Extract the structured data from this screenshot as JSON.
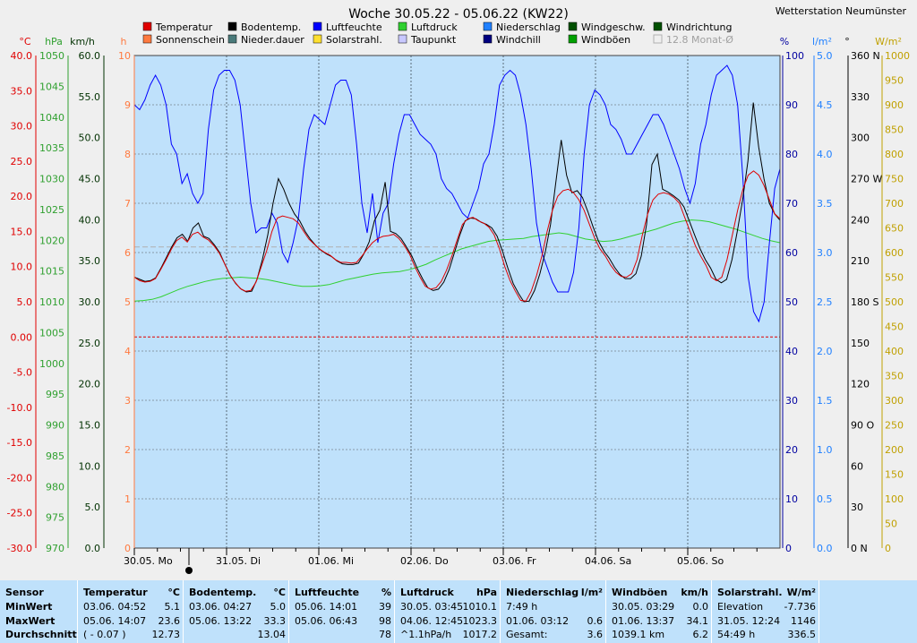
{
  "header": {
    "title": "Woche 30.05.22 - 05.06.22 (KW22)",
    "station": "Wetterstation Neumünster"
  },
  "legend": [
    {
      "label": "Temperatur",
      "color": "#e00000"
    },
    {
      "label": "Sonnenschein",
      "color": "#ff7a40"
    },
    {
      "label": "Bodentemp.",
      "color": "#000000"
    },
    {
      "label": "Nieder.dauer",
      "color": "#4a7a7a"
    },
    {
      "label": "Luftfeuchte",
      "color": "#0000ff"
    },
    {
      "label": "Solarstrahl.",
      "color": "#ffe030"
    },
    {
      "label": "Luftdruck",
      "color": "#30d030"
    },
    {
      "label": "Taupunkt",
      "color": "#c8c8ff"
    },
    {
      "label": "Niederschlag",
      "color": "#2080ff"
    },
    {
      "label": "Windchill",
      "color": "#000080"
    },
    {
      "label": "Windgeschw.",
      "color": "#005000"
    },
    {
      "label": "Windböen",
      "color": "#00a000"
    },
    {
      "label": "Windrichtung",
      "color": "#005000"
    },
    {
      "label": "12.8 Monat-Ø",
      "color": "#c8c8c8"
    }
  ],
  "chart_data": {
    "type": "line",
    "title": "Woche 30.05.22 - 05.06.22 (KW22)",
    "x_days": [
      "30.05. Mo",
      "31.05. Di",
      "01.06. Mi",
      "02.06. Do",
      "03.06. Fr",
      "04.06. Sa",
      "05.06. So"
    ],
    "axes": {
      "temp": {
        "unit": "°C",
        "color": "#e00000",
        "ticks": [
          "40.0",
          "35.0",
          "30.0",
          "25.0",
          "20.0",
          "15.0",
          "10.0",
          "5.0",
          "0.00",
          "-5.0",
          "-10.0",
          "-15.0",
          "-20.0",
          "-25.0",
          "-30.0"
        ]
      },
      "press": {
        "unit": "hPa",
        "color": "#30a030",
        "ticks": [
          "1050",
          "1045",
          "1040",
          "1035",
          "1030",
          "1025",
          "1020",
          "1015",
          "1010",
          "1005",
          "1000",
          "995",
          "990",
          "985",
          "980",
          "975",
          "970"
        ]
      },
      "wind": {
        "unit": "km/h",
        "color": "#003000",
        "ticks": [
          "60.0",
          "55.0",
          "50.0",
          "45.0",
          "40.0",
          "35.0",
          "30.0",
          "25.0",
          "20.0",
          "15.0",
          "10.0",
          "5.0",
          "0.0"
        ]
      },
      "hours": {
        "unit": "h",
        "color": "#ff7a40",
        "ticks": [
          "10",
          "9",
          "8",
          "7",
          "6",
          "5",
          "4",
          "3",
          "2",
          "1",
          "0"
        ]
      },
      "hum": {
        "unit": "%",
        "color": "#0000a0",
        "ticks": [
          "100",
          "90",
          "80",
          "70",
          "60",
          "50",
          "40",
          "30",
          "20",
          "10",
          "0"
        ]
      },
      "rain": {
        "unit": "l/m²",
        "color": "#2080ff",
        "ticks": [
          "5.0",
          "4.5",
          "4.0",
          "3.5",
          "3.0",
          "2.5",
          "2.0",
          "1.5",
          "1.0",
          "0.5",
          "0.0"
        ]
      },
      "dir": {
        "unit": "°",
        "color": "#000000",
        "ticks": [
          "360 N",
          "330",
          "300",
          "270 W",
          "240",
          "210",
          "180 S",
          "150",
          "120",
          "90 O",
          "60",
          "30",
          "0 N"
        ]
      },
      "solar": {
        "unit": "W/m²",
        "color": "#c0a000",
        "ticks": [
          "1000",
          "950",
          "900",
          "850",
          "800",
          "750",
          "700",
          "650",
          "600",
          "550",
          "500",
          "450",
          "400",
          "350",
          "300",
          "250",
          "200",
          "150",
          "100",
          "50",
          "0"
        ]
      }
    },
    "hour_markers": [
      0,
      6,
      12,
      18
    ],
    "series_hourly": {
      "temperatur": [
        8.5,
        8.0,
        7.8,
        7.9,
        8.3,
        9.6,
        11.0,
        12.5,
        13.7,
        14.2,
        13.5,
        14.6,
        14.9,
        14.2,
        13.8,
        13.0,
        12.0,
        10.5,
        8.9,
        7.8,
        6.9,
        6.5,
        6.6,
        7.8,
        10.0,
        12.2,
        15.0,
        16.9,
        17.2,
        17.0,
        16.8,
        16.2,
        15.0,
        13.9,
        13.2,
        12.5,
        12.0,
        11.6,
        11.0,
        10.6,
        10.6,
        10.5,
        10.6,
        11.5,
        12.5,
        13.4,
        14.0,
        14.3,
        14.4,
        14.6,
        14.0,
        13.0,
        11.8,
        10.0,
        8.5,
        7.2,
        6.8,
        7.0,
        7.9,
        9.5,
        11.5,
        13.8,
        16.0,
        16.8,
        17.0,
        16.5,
        16.2,
        15.6,
        14.5,
        12.5,
        10.0,
        8.0,
        6.5,
        5.2,
        5.1,
        6.5,
        8.7,
        11.5,
        15.0,
        18.0,
        20.0,
        20.8,
        21.0,
        20.5,
        19.5,
        18.0,
        16.0,
        14.0,
        12.5,
        11.5,
        10.2,
        9.2,
        8.6,
        8.5,
        9.0,
        11.0,
        14.5,
        17.5,
        19.5,
        20.3,
        20.5,
        20.3,
        19.8,
        19.0,
        17.0,
        15.0,
        13.0,
        11.5,
        10.2,
        8.5,
        8.0,
        8.5,
        11.0,
        14.5,
        18.0,
        21.0,
        23.0,
        23.6,
        23.0,
        21.5,
        19.5,
        17.5,
        16.8
      ],
      "luftfeuchte": [
        90,
        89,
        91,
        94,
        96,
        94,
        90,
        82,
        80,
        74,
        76,
        72,
        70,
        72,
        85,
        93,
        96,
        97,
        97,
        95,
        90,
        80,
        70,
        64,
        65,
        65,
        68,
        66,
        60,
        58,
        62,
        67,
        77,
        85,
        88,
        87,
        86,
        90,
        94,
        95,
        95,
        92,
        82,
        70,
        64,
        72,
        62,
        68,
        70,
        78,
        84,
        88,
        88,
        86,
        84,
        83,
        82,
        80,
        75,
        73,
        72,
        70,
        68,
        67,
        70,
        73,
        78,
        80,
        86,
        94,
        96,
        97,
        96,
        92,
        86,
        77,
        66,
        60,
        57,
        54,
        52,
        52,
        52,
        56,
        65,
        80,
        90,
        93,
        92,
        90,
        86,
        85,
        83,
        80,
        80,
        82,
        84,
        86,
        88,
        88,
        86,
        83,
        80,
        77,
        73,
        70,
        74,
        82,
        86,
        92,
        96,
        97,
        98,
        96,
        90,
        75,
        55,
        48,
        46,
        50,
        62,
        73,
        77
      ],
      "luftdruck": [
        1010.1,
        1010.2,
        1010.4,
        1010.8,
        1011.4,
        1012.0,
        1012.5,
        1012.9,
        1013.3,
        1013.6,
        1013.8,
        1013.9,
        1014.0,
        1013.9,
        1013.8,
        1013.6,
        1013.3,
        1013.0,
        1012.7,
        1012.5,
        1012.5,
        1012.6,
        1012.8,
        1013.2,
        1013.6,
        1013.9,
        1014.2,
        1014.5,
        1014.7,
        1014.8,
        1014.9,
        1015.2,
        1015.6,
        1016.1,
        1016.8,
        1017.4,
        1018.0,
        1018.6,
        1019.0,
        1019.4,
        1019.8,
        1020.0,
        1020.1,
        1020.2,
        1020.3,
        1020.6,
        1020.8,
        1021.0,
        1021.2,
        1021.0,
        1020.6,
        1020.2,
        1020.0,
        1019.8,
        1019.9,
        1020.2,
        1020.6,
        1021.0,
        1021.4,
        1021.8,
        1022.3,
        1022.8,
        1023.1,
        1023.3,
        1023.2,
        1023.0,
        1022.6,
        1022.2,
        1021.8,
        1021.3,
        1020.8,
        1020.3,
        1019.9,
        1019.6
      ],
      "bodentemp": [
        8.5,
        8.2,
        7.9,
        8.0,
        8.4,
        9.8,
        11.3,
        12.8,
        14.1,
        14.6,
        13.6,
        15.5,
        16.2,
        14.3,
        14.0,
        13.1,
        12.0,
        10.3,
        8.7,
        7.6,
        6.8,
        6.4,
        6.5,
        8.2,
        11.0,
        14.5,
        19.0,
        22.5,
        21.0,
        19.0,
        17.5,
        16.5,
        15.0,
        13.9,
        13.0,
        12.3,
        11.8,
        11.4,
        10.8,
        10.4,
        10.3,
        10.3,
        10.5,
        11.8,
        13.5,
        16.5,
        18.0,
        22.0,
        15.0,
        14.7,
        14.0,
        12.8,
        11.5,
        9.8,
        8.3,
        7.0,
        6.6,
        6.8,
        7.8,
        9.6,
        12.0,
        14.5,
        16.5,
        16.9,
        16.8,
        16.3,
        16.0,
        15.5,
        14.3,
        12.2,
        9.8,
        7.6,
        6.2,
        5.0,
        5.1,
        6.6,
        9.0,
        12.0,
        16.0,
        22.0,
        28.0,
        23.0,
        20.5,
        20.8,
        19.8,
        17.8,
        15.6,
        13.6,
        12.2,
        11.2,
        9.9,
        8.9,
        8.3,
        8.3,
        9.0,
        11.5,
        16.0,
        24.5,
        26.0,
        21.0,
        20.6,
        20.1,
        19.5,
        18.5,
        16.5,
        14.5,
        12.6,
        11.0,
        9.8,
        8.2,
        7.7,
        8.2,
        11.0,
        15.0,
        19.5,
        25.0,
        33.3,
        27.0,
        22.5,
        19.0,
        17.5,
        16.6
      ]
    },
    "summary": {
      "sensor_label": "Sensor",
      "minwert_label": "MinWert",
      "maxwert_label": "MaxWert",
      "durchschnitt_label": "Durchschnitt",
      "temperatur": {
        "label": "Temperatur",
        "unit": "°C",
        "min_time": "03.06. 04:52",
        "min": "5.1",
        "max_time": "05.06. 14:07",
        "max": "23.6",
        "avg_note": "( - 0.07 )",
        "avg": "12.73"
      },
      "bodentemp": {
        "label": "Bodentemp.",
        "unit": "°C",
        "min_time": "03.06. 04:27",
        "min": "5.0",
        "max_time": "05.06. 13:22",
        "max": "33.3",
        "avg_note": "",
        "avg": "13.04"
      },
      "luftfeuchte": {
        "label": "Luftfeuchte",
        "unit": "%",
        "min_time": "05.06. 14:01",
        "min": "39",
        "max_time": "05.06. 06:43",
        "max": "98",
        "avg_note": "",
        "avg": "78"
      },
      "luftdruck": {
        "label": "Luftdruck",
        "unit": "hPa",
        "min_time": "30.05. 03:45",
        "min": "1010.1",
        "max_time": "04.06. 12:45",
        "max": "1023.3",
        "avg_note": "^1.1hPa/h",
        "avg": "1017.2"
      },
      "niederschlag": {
        "label": "Niederschlag",
        "unit": "l/m²",
        "min_time": "7:49 h",
        "min": "",
        "max_time": "01.06. 03:12",
        "max": "0.6",
        "avg_note": "Gesamt:",
        "avg": "3.6"
      },
      "windboeen": {
        "label": "Windböen",
        "unit": "km/h",
        "min_time": "30.05. 03:29",
        "min": "0.0",
        "max_time": "01.06. 13:37",
        "max": "34.1",
        "avg_note": "1039.1 km",
        "avg": "6.2"
      },
      "solarstrahl": {
        "label": "Solarstrahl.",
        "unit": "W/m²",
        "min_time": "Elevation",
        "min": "-7.736",
        "max_time": "31.05. 12:24",
        "max": "1146",
        "avg_note": "54:49 h",
        "avg": "336.5"
      }
    }
  }
}
